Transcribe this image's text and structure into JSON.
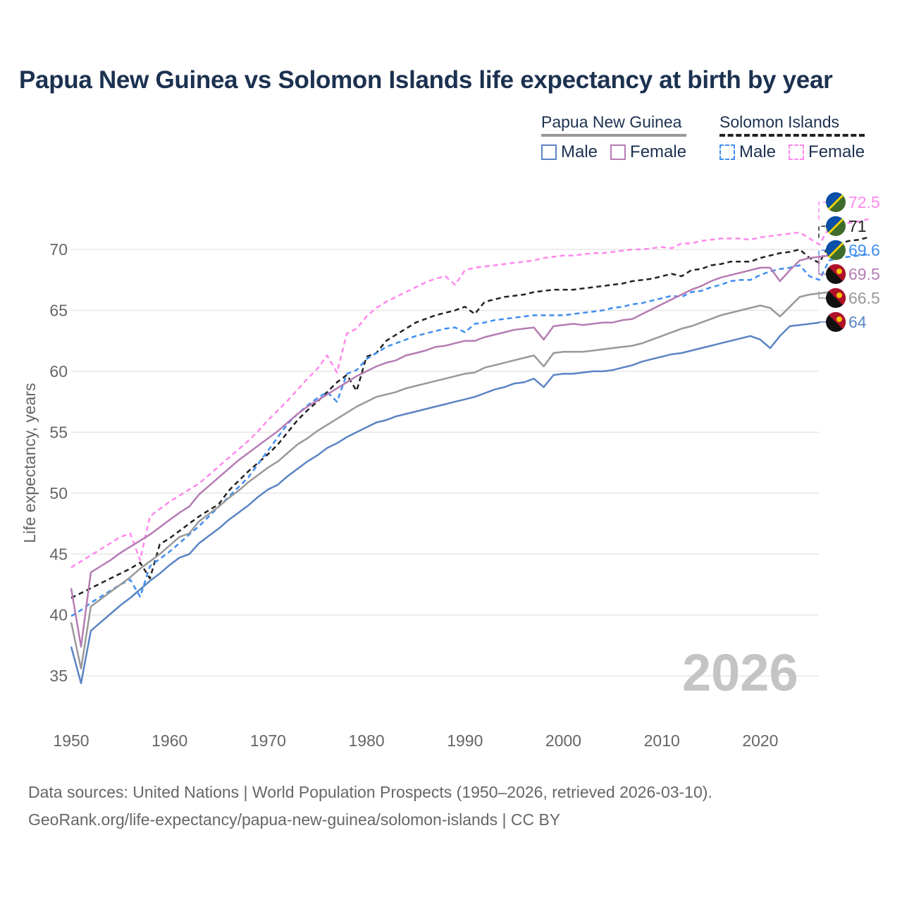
{
  "title": "Papua New Guinea vs Solomon Islands life expectancy at birth by year",
  "legend": {
    "groups": [
      {
        "label": "Papua New Guinea",
        "items": [
          {
            "label": "Male",
            "color": "#5b84c4",
            "dash": false
          },
          {
            "label": "Female",
            "color": "#b57cb4",
            "dash": false
          }
        ]
      },
      {
        "label": "Solomon Islands",
        "items": [
          {
            "label": "Male",
            "color": "#3f8ef0",
            "dash": true
          },
          {
            "label": "Female",
            "color": "#ff88ee",
            "dash": true
          }
        ]
      }
    ]
  },
  "watermark_year": "2026",
  "footer": {
    "line1": "Data sources: United Nations | World Population Prospects (1950–2026, retrieved 2026-03-10).",
    "line2": "GeoRank.org/life-expectancy/papua-new-guinea/solomon-islands | CC BY"
  },
  "end_labels": [
    {
      "value": "72.5",
      "color": "#ff88ee",
      "flag": "solomon-islands-flag"
    },
    {
      "value": "71",
      "color": "#222222",
      "flag": "solomon-islands-flag"
    },
    {
      "value": "69.6",
      "color": "#3f8ef0",
      "flag": "solomon-islands-flag"
    },
    {
      "value": "69.5",
      "color": "#b57cb4",
      "flag": "papua-new-guinea-flag"
    },
    {
      "value": "66.5",
      "color": "#999999",
      "flag": "papua-new-guinea-flag"
    },
    {
      "value": "64",
      "color": "#5b84c4",
      "flag": "papua-new-guinea-flag"
    }
  ],
  "chart_data": {
    "type": "line",
    "title": "Papua New Guinea vs Solomon Islands life expectancy at birth by year",
    "xlabel": "",
    "ylabel": "Life expectancy, years",
    "xlim": [
      1950,
      2026
    ],
    "ylim": [
      32,
      74
    ],
    "xticks": [
      1950,
      1960,
      1970,
      1980,
      1990,
      2000,
      2010,
      2020
    ],
    "yticks": [
      35,
      40,
      45,
      50,
      55,
      60,
      65,
      70
    ],
    "grid": true,
    "legend_position": "top-right",
    "x_start": 1950,
    "series": [
      {
        "name": "Solomon Islands Female",
        "color": "#ff88ee",
        "dash": true,
        "values": [
          43.9,
          44.4,
          44.9,
          45.4,
          45.9,
          46.4,
          46.7,
          44.5,
          48.1,
          48.7,
          49.3,
          49.8,
          50.3,
          50.8,
          51.5,
          52.2,
          52.9,
          53.6,
          54.3,
          55.1,
          56.0,
          56.8,
          57.6,
          58.5,
          59.4,
          60.2,
          61.3,
          59.9,
          63.1,
          63.5,
          64.5,
          65.2,
          65.7,
          66.1,
          66.5,
          66.9,
          67.3,
          67.6,
          67.8,
          67.1,
          68.3,
          68.5,
          68.6,
          68.7,
          68.8,
          68.9,
          69.0,
          69.1,
          69.3,
          69.4,
          69.5,
          69.5,
          69.6,
          69.7,
          69.7,
          69.8,
          69.9,
          70.0,
          70.0,
          70.1,
          70.2,
          70.1,
          70.5,
          70.5,
          70.7,
          70.8,
          70.9,
          70.9,
          70.9,
          70.8,
          71.0,
          71.1,
          71.2,
          71.3,
          71.4,
          70.9,
          70.4,
          71.8,
          72.0,
          72.2,
          72.3,
          72.5
        ],
        "values_note": "index 0 = 1950"
      },
      {
        "name": "Solomon Islands Both",
        "color": "#222222",
        "dash": true,
        "values": [
          41.4,
          41.8,
          42.2,
          42.6,
          43.0,
          43.4,
          43.8,
          44.3,
          43.0,
          45.8,
          46.3,
          46.9,
          47.5,
          48.1,
          48.6,
          49.1,
          50.2,
          51.0,
          51.8,
          52.5,
          53.2,
          54.0,
          55.0,
          56.0,
          56.8,
          57.5,
          58.3,
          59.1,
          59.7,
          58.4,
          61.2,
          61.5,
          62.5,
          63.0,
          63.5,
          64.0,
          64.3,
          64.6,
          64.8,
          65.0,
          65.3,
          64.7,
          65.7,
          65.9,
          66.1,
          66.2,
          66.3,
          66.5,
          66.6,
          66.7,
          66.7,
          66.7,
          66.8,
          66.9,
          67.0,
          67.1,
          67.2,
          67.4,
          67.5,
          67.6,
          67.8,
          68.0,
          67.8,
          68.3,
          68.4,
          68.7,
          68.8,
          69.0,
          69.0,
          69.0,
          69.3,
          69.5,
          69.7,
          69.8,
          70.0,
          69.3,
          68.9,
          70.4,
          70.5,
          70.7,
          70.8,
          71.0
        ]
      },
      {
        "name": "Solomon Islands Male",
        "color": "#3f8ef0",
        "dash": true,
        "values": [
          39.9,
          40.4,
          41.0,
          41.5,
          42.0,
          42.5,
          42.9,
          41.5,
          44.0,
          44.6,
          45.2,
          45.9,
          46.6,
          47.3,
          48.1,
          48.9,
          49.7,
          50.5,
          51.3,
          52.4,
          53.5,
          54.6,
          55.7,
          56.5,
          57.2,
          57.8,
          58.3,
          57.5,
          59.8,
          60.1,
          61.0,
          61.5,
          62.0,
          62.3,
          62.6,
          62.9,
          63.1,
          63.3,
          63.5,
          63.6,
          63.2,
          63.9,
          64.0,
          64.2,
          64.3,
          64.4,
          64.5,
          64.6,
          64.6,
          64.6,
          64.6,
          64.7,
          64.8,
          64.9,
          65.0,
          65.2,
          65.3,
          65.5,
          65.6,
          65.8,
          66.0,
          66.2,
          66.1,
          66.5,
          66.6,
          66.9,
          67.1,
          67.4,
          67.5,
          67.5,
          67.9,
          68.2,
          68.4,
          68.5,
          68.7,
          67.8,
          67.5,
          69.1,
          69.3,
          69.4,
          69.5,
          69.6
        ]
      },
      {
        "name": "Papua New Guinea Female",
        "color": "#b57cb4",
        "dash": false,
        "values": [
          42.2,
          37.4,
          43.5,
          44.0,
          44.5,
          45.1,
          45.6,
          46.1,
          46.6,
          47.2,
          47.8,
          48.4,
          48.9,
          49.9,
          50.6,
          51.3,
          52.0,
          52.7,
          53.3,
          53.9,
          54.5,
          55.1,
          55.8,
          56.5,
          57.1,
          57.6,
          58.1,
          58.6,
          59.1,
          59.6,
          60.0,
          60.4,
          60.7,
          60.9,
          61.3,
          61.5,
          61.7,
          62.0,
          62.1,
          62.3,
          62.5,
          62.5,
          62.8,
          63.0,
          63.2,
          63.4,
          63.5,
          63.6,
          62.6,
          63.7,
          63.8,
          63.9,
          63.8,
          63.9,
          64.0,
          64.0,
          64.2,
          64.3,
          64.7,
          65.1,
          65.5,
          65.9,
          66.3,
          66.7,
          67.0,
          67.4,
          67.7,
          67.9,
          68.1,
          68.3,
          68.5,
          68.5,
          67.4,
          68.3,
          69.1,
          69.3,
          69.4,
          69.5
        ]
      },
      {
        "name": "Papua New Guinea Both",
        "color": "#999999",
        "dash": false,
        "values": [
          39.4,
          35.6,
          40.7,
          41.3,
          41.9,
          42.5,
          43.1,
          43.8,
          44.4,
          45.0,
          45.7,
          46.4,
          46.7,
          47.7,
          48.3,
          48.9,
          49.6,
          50.2,
          50.9,
          51.5,
          52.1,
          52.6,
          53.3,
          54.0,
          54.5,
          55.1,
          55.6,
          56.1,
          56.6,
          57.1,
          57.5,
          57.9,
          58.1,
          58.3,
          58.6,
          58.8,
          59.0,
          59.2,
          59.4,
          59.6,
          59.8,
          59.9,
          60.3,
          60.5,
          60.7,
          60.9,
          61.1,
          61.3,
          60.4,
          61.5,
          61.6,
          61.6,
          61.6,
          61.7,
          61.8,
          61.9,
          62.0,
          62.1,
          62.3,
          62.6,
          62.9,
          63.2,
          63.5,
          63.7,
          64.0,
          64.3,
          64.6,
          64.8,
          65.0,
          65.2,
          65.4,
          65.2,
          64.5,
          65.3,
          66.1,
          66.3,
          66.4,
          66.5
        ]
      },
      {
        "name": "Papua New Guinea Male",
        "color": "#5b84c4",
        "dash": false,
        "values": [
          37.4,
          34.4,
          38.7,
          39.4,
          40.1,
          40.8,
          41.4,
          42.1,
          42.8,
          43.4,
          44.1,
          44.7,
          45.0,
          45.9,
          46.5,
          47.1,
          47.8,
          48.4,
          49.0,
          49.7,
          50.3,
          50.7,
          51.4,
          52.0,
          52.6,
          53.1,
          53.7,
          54.1,
          54.6,
          55.0,
          55.4,
          55.8,
          56.0,
          56.3,
          56.5,
          56.7,
          56.9,
          57.1,
          57.3,
          57.5,
          57.7,
          57.9,
          58.2,
          58.5,
          58.7,
          59.0,
          59.1,
          59.4,
          58.7,
          59.7,
          59.8,
          59.8,
          59.9,
          60.0,
          60.0,
          60.1,
          60.3,
          60.5,
          60.8,
          61.0,
          61.2,
          61.4,
          61.5,
          61.7,
          61.9,
          62.1,
          62.3,
          62.5,
          62.7,
          62.9,
          62.6,
          61.9,
          62.9,
          63.7,
          63.8,
          63.9,
          64.0
        ]
      }
    ]
  }
}
